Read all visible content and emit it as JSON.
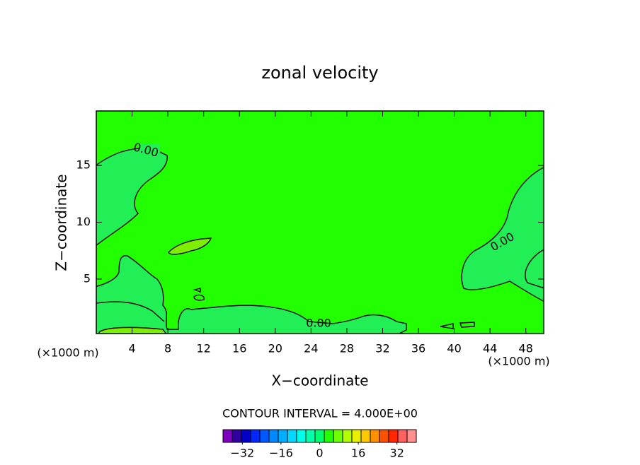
{
  "chart_data": {
    "type": "contour",
    "title": "zonal velocity",
    "x_label": "X−coordinate",
    "y_label": "Z−coordinate",
    "x_unit": "(×1000 m)",
    "xlim": [
      0,
      50
    ],
    "xticks": [
      4,
      8,
      12,
      16,
      20,
      24,
      28,
      32,
      36,
      40,
      44,
      48
    ],
    "ylim": [
      0.2,
      19.8
    ],
    "yticks": [
      5,
      10,
      15
    ],
    "background_color": "#22ff00",
    "contour_label": "0.00",
    "contour_interval_text": "CONTOUR INTERVAL = 4.000E+00",
    "colorbar": {
      "lim": [
        -40,
        40
      ],
      "ticks": [
        {
          "value": -32,
          "label": "−32"
        },
        {
          "value": -16,
          "label": "−16"
        },
        0,
        16,
        32
      ],
      "colors": [
        "#8000c0",
        "#3000a0",
        "#0000c8",
        "#0028ff",
        "#0058ff",
        "#0088ff",
        "#00b0ff",
        "#00d8ff",
        "#00ffe8",
        "#00ffa8",
        "#00ff70",
        "#22ff00",
        "#70ff00",
        "#b0ff00",
        "#e8f000",
        "#ffc800",
        "#ff9000",
        "#ff5000",
        "#ff2800",
        "#ff6060",
        "#ff9090"
      ]
    }
  }
}
